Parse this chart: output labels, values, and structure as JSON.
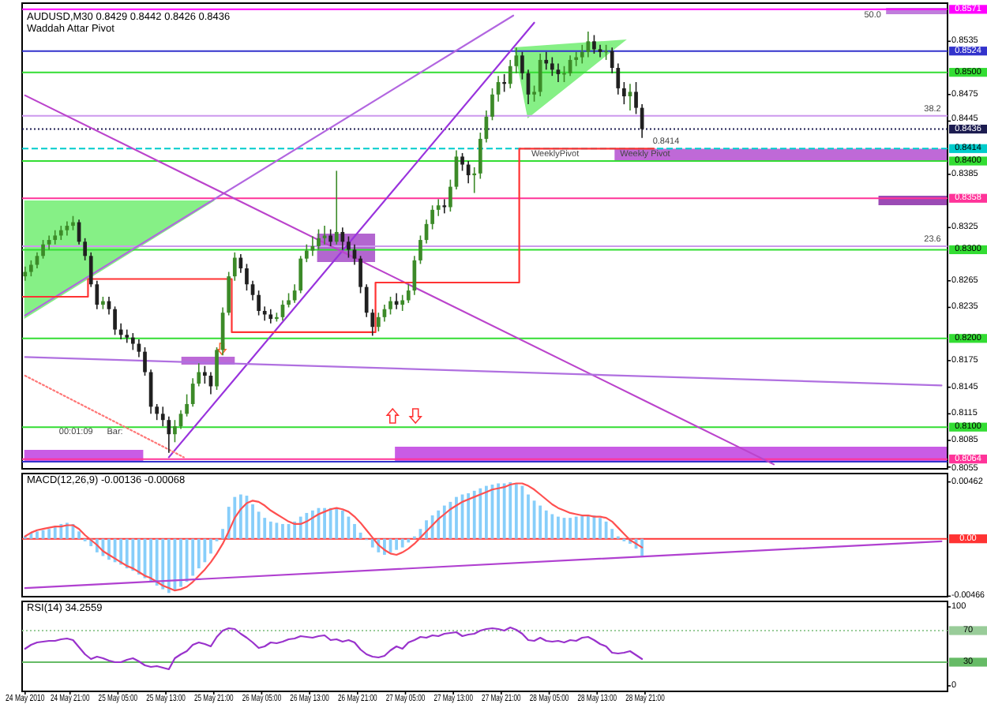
{
  "chart_data": [
    {
      "type": "candlestick",
      "title": "AUDUSD,M30 0.8429 0.8442 0.8426 0.8436",
      "subtitle": "Waddah Attar Pivot",
      "tick_labels": "y",
      "xlim": [
        "2010-05-24T13:00",
        "2010-05-30T23:30"
      ],
      "ylim": [
        0.8053,
        0.8578
      ],
      "yticks": [
        0.8535,
        0.8475,
        0.8445,
        0.8385,
        0.8325,
        0.8265,
        0.8235,
        0.8175,
        0.8145,
        0.8115,
        0.8085,
        0.8055
      ],
      "x": [
        "2010-05-24T13:30",
        "2010-05-24T14:30",
        "2010-05-24T15:30",
        "2010-05-24T16:30",
        "2010-05-24T17:30",
        "2010-05-24T18:30",
        "2010-05-24T19:30",
        "2010-05-24T20:30",
        "2010-05-24T21:30",
        "2010-05-24T22:30",
        "2010-05-24T23:30",
        "2010-05-25T00:30",
        "2010-05-25T01:30",
        "2010-05-25T02:30",
        "2010-05-25T03:30",
        "2010-05-25T04:30",
        "2010-05-25T05:30",
        "2010-05-25T06:30",
        "2010-05-25T07:30",
        "2010-05-25T08:30",
        "2010-05-25T09:30",
        "2010-05-25T10:30",
        "2010-05-25T11:30",
        "2010-05-25T12:30",
        "2010-05-25T13:30",
        "2010-05-25T14:30",
        "2010-05-25T15:30",
        "2010-05-25T16:30",
        "2010-05-25T17:30",
        "2010-05-25T18:30",
        "2010-05-25T19:30",
        "2010-05-25T20:30",
        "2010-05-25T21:30",
        "2010-05-25T22:30",
        "2010-05-25T23:30",
        "2010-05-26T00:30",
        "2010-05-26T01:30",
        "2010-05-26T02:30",
        "2010-05-26T03:30",
        "2010-05-26T04:30",
        "2010-05-26T05:30",
        "2010-05-26T06:30",
        "2010-05-26T07:30",
        "2010-05-26T08:30",
        "2010-05-26T09:30",
        "2010-05-26T10:30",
        "2010-05-26T11:30",
        "2010-05-26T12:30",
        "2010-05-26T13:30",
        "2010-05-26T14:30",
        "2010-05-26T15:30",
        "2010-05-26T16:30",
        "2010-05-26T17:30",
        "2010-05-26T18:30",
        "2010-05-26T19:30",
        "2010-05-26T20:30",
        "2010-05-26T21:30",
        "2010-05-26T22:30",
        "2010-05-26T23:30",
        "2010-05-27T00:30",
        "2010-05-27T01:30",
        "2010-05-27T02:30",
        "2010-05-27T03:30",
        "2010-05-27T04:30",
        "2010-05-27T05:30",
        "2010-05-27T06:30",
        "2010-05-27T07:30",
        "2010-05-27T08:30",
        "2010-05-27T09:30",
        "2010-05-27T10:30",
        "2010-05-27T11:30",
        "2010-05-27T12:30",
        "2010-05-27T13:30",
        "2010-05-27T14:30",
        "2010-05-27T15:30",
        "2010-05-27T16:30",
        "2010-05-27T17:30",
        "2010-05-27T18:30",
        "2010-05-27T19:30",
        "2010-05-27T20:30",
        "2010-05-27T21:30",
        "2010-05-27T22:30",
        "2010-05-27T23:30",
        "2010-05-28T00:30",
        "2010-05-28T01:30",
        "2010-05-28T02:30",
        "2010-05-28T03:30",
        "2010-05-28T04:30",
        "2010-05-28T05:30",
        "2010-05-28T06:30",
        "2010-05-28T07:30",
        "2010-05-28T08:30",
        "2010-05-28T09:30",
        "2010-05-28T10:30",
        "2010-05-28T11:30",
        "2010-05-28T12:30",
        "2010-05-28T13:30",
        "2010-05-28T14:30",
        "2010-05-28T15:30",
        "2010-05-28T16:30",
        "2010-05-28T17:30",
        "2010-05-28T18:30",
        "2010-05-28T19:30",
        "2010-05-28T20:30"
      ],
      "ohlc": [
        [
          0.827,
          0.8281,
          0.8265,
          0.8275
        ],
        [
          0.8275,
          0.8288,
          0.827,
          0.8283
        ],
        [
          0.8283,
          0.8297,
          0.8279,
          0.8293
        ],
        [
          0.8293,
          0.8311,
          0.829,
          0.8306
        ],
        [
          0.8306,
          0.8316,
          0.83,
          0.8311
        ],
        [
          0.8311,
          0.8322,
          0.8306,
          0.8316
        ],
        [
          0.8316,
          0.8327,
          0.8311,
          0.8322
        ],
        [
          0.8322,
          0.8332,
          0.8316,
          0.8327
        ],
        [
          0.8327,
          0.8338,
          0.8322,
          0.8331
        ],
        [
          0.8331,
          0.8334,
          0.8306,
          0.8309
        ],
        [
          0.8309,
          0.8313,
          0.8288,
          0.8293
        ],
        [
          0.8293,
          0.8297,
          0.8258,
          0.8261
        ],
        [
          0.8261,
          0.8265,
          0.8233,
          0.8238
        ],
        [
          0.8238,
          0.8247,
          0.8233,
          0.8242
        ],
        [
          0.8242,
          0.8247,
          0.8227,
          0.8233
        ],
        [
          0.8233,
          0.8236,
          0.8204,
          0.821
        ],
        [
          0.821,
          0.8217,
          0.8199,
          0.8204
        ],
        [
          0.8204,
          0.821,
          0.8195,
          0.8201
        ],
        [
          0.8201,
          0.8206,
          0.8187,
          0.8194
        ],
        [
          0.8194,
          0.8199,
          0.8179,
          0.8185
        ],
        [
          0.8185,
          0.819,
          0.8158,
          0.8162
        ],
        [
          0.8162,
          0.8165,
          0.8115,
          0.8123
        ],
        [
          0.8123,
          0.8126,
          0.8108,
          0.8115
        ],
        [
          0.8115,
          0.8123,
          0.8101,
          0.8108
        ],
        [
          0.8108,
          0.8112,
          0.8071,
          0.8092
        ],
        [
          0.8092,
          0.8108,
          0.8083,
          0.8101
        ],
        [
          0.8101,
          0.8119,
          0.8098,
          0.8115
        ],
        [
          0.8115,
          0.8137,
          0.8112,
          0.8126
        ],
        [
          0.8126,
          0.8155,
          0.8123,
          0.8149
        ],
        [
          0.8149,
          0.8172,
          0.8146,
          0.8162
        ],
        [
          0.8162,
          0.8169,
          0.8149,
          0.8158
        ],
        [
          0.8158,
          0.8162,
          0.8137,
          0.8146
        ],
        [
          0.8146,
          0.819,
          0.8142,
          0.8187
        ],
        [
          0.8187,
          0.8235,
          0.8181,
          0.8229
        ],
        [
          0.8229,
          0.8275,
          0.8226,
          0.827
        ],
        [
          0.827,
          0.8297,
          0.8265,
          0.8291
        ],
        [
          0.8291,
          0.8295,
          0.8274,
          0.8279
        ],
        [
          0.8279,
          0.8284,
          0.8254,
          0.8261
        ],
        [
          0.8261,
          0.8265,
          0.8243,
          0.8249
        ],
        [
          0.8249,
          0.8254,
          0.8226,
          0.8231
        ],
        [
          0.8231,
          0.8236,
          0.822,
          0.8227
        ],
        [
          0.8227,
          0.8233,
          0.8217,
          0.8222
        ],
        [
          0.8222,
          0.8229,
          0.8219,
          0.8224
        ],
        [
          0.8224,
          0.8243,
          0.822,
          0.8238
        ],
        [
          0.8238,
          0.8251,
          0.8235,
          0.8243
        ],
        [
          0.8243,
          0.8261,
          0.824,
          0.8254
        ],
        [
          0.8254,
          0.8293,
          0.8251,
          0.829
        ],
        [
          0.829,
          0.8306,
          0.8286,
          0.8299
        ],
        [
          0.8299,
          0.8315,
          0.8293,
          0.8304
        ],
        [
          0.8304,
          0.8323,
          0.83,
          0.8313
        ],
        [
          0.8313,
          0.8327,
          0.8306,
          0.8316
        ],
        [
          0.8316,
          0.8323,
          0.8304,
          0.8309
        ],
        [
          0.8309,
          0.8389,
          0.8306,
          0.832
        ],
        [
          0.832,
          0.8325,
          0.83,
          0.8309
        ],
        [
          0.8309,
          0.8315,
          0.8291,
          0.83
        ],
        [
          0.83,
          0.8306,
          0.8283,
          0.829
        ],
        [
          0.829,
          0.8293,
          0.8251,
          0.8258
        ],
        [
          0.8258,
          0.8261,
          0.8224,
          0.8229
        ],
        [
          0.8229,
          0.8233,
          0.8203,
          0.8213
        ],
        [
          0.8213,
          0.8229,
          0.8208,
          0.8224
        ],
        [
          0.8224,
          0.8238,
          0.8219,
          0.8233
        ],
        [
          0.8233,
          0.8247,
          0.8227,
          0.8242
        ],
        [
          0.8242,
          0.8251,
          0.8233,
          0.8238
        ],
        [
          0.8238,
          0.8249,
          0.8231,
          0.8243
        ],
        [
          0.8243,
          0.8261,
          0.824,
          0.8254
        ],
        [
          0.8254,
          0.8293,
          0.8249,
          0.8288
        ],
        [
          0.8288,
          0.8316,
          0.8284,
          0.8311
        ],
        [
          0.8311,
          0.8334,
          0.8307,
          0.8329
        ],
        [
          0.8329,
          0.835,
          0.8323,
          0.8345
        ],
        [
          0.8345,
          0.8357,
          0.8338,
          0.835
        ],
        [
          0.835,
          0.8357,
          0.8341,
          0.8348
        ],
        [
          0.8348,
          0.8379,
          0.8343,
          0.8371
        ],
        [
          0.8371,
          0.8412,
          0.8368,
          0.8405
        ],
        [
          0.8405,
          0.8409,
          0.8389,
          0.8396
        ],
        [
          0.8396,
          0.84,
          0.8375,
          0.8384
        ],
        [
          0.8384,
          0.8393,
          0.8364,
          0.8386
        ],
        [
          0.8386,
          0.8432,
          0.838,
          0.8425
        ],
        [
          0.8425,
          0.8457,
          0.8421,
          0.845
        ],
        [
          0.845,
          0.8482,
          0.8446,
          0.8475
        ],
        [
          0.8475,
          0.8496,
          0.8467,
          0.8489
        ],
        [
          0.8489,
          0.8498,
          0.8478,
          0.8487
        ],
        [
          0.8487,
          0.8514,
          0.8482,
          0.8507
        ],
        [
          0.8507,
          0.8528,
          0.8499,
          0.8519
        ],
        [
          0.8519,
          0.8523,
          0.8492,
          0.8499
        ],
        [
          0.8499,
          0.8503,
          0.8464,
          0.8475
        ],
        [
          0.8475,
          0.8485,
          0.8467,
          0.8478
        ],
        [
          0.8478,
          0.8521,
          0.8473,
          0.8514
        ],
        [
          0.8514,
          0.8523,
          0.8503,
          0.851
        ],
        [
          0.851,
          0.8517,
          0.8496,
          0.8503
        ],
        [
          0.8503,
          0.851,
          0.8489,
          0.8498
        ],
        [
          0.8498,
          0.8507,
          0.8489,
          0.8499
        ],
        [
          0.8499,
          0.8519,
          0.8496,
          0.8514
        ],
        [
          0.8514,
          0.8523,
          0.8507,
          0.8517
        ],
        [
          0.8517,
          0.8531,
          0.851,
          0.8523
        ],
        [
          0.8523,
          0.8546,
          0.8517,
          0.8535
        ],
        [
          0.8535,
          0.8542,
          0.8521,
          0.8526
        ],
        [
          0.8526,
          0.8531,
          0.8517,
          0.8523
        ],
        [
          0.8523,
          0.8531,
          0.8514,
          0.8524
        ],
        [
          0.8524,
          0.8528,
          0.8499,
          0.8505
        ],
        [
          0.8505,
          0.851,
          0.8475,
          0.8482
        ],
        [
          0.8482,
          0.8489,
          0.8464,
          0.8473
        ],
        [
          0.8473,
          0.8487,
          0.8457,
          0.8478
        ],
        [
          0.8478,
          0.8489,
          0.8453,
          0.846
        ],
        [
          0.846,
          0.8464,
          0.8426,
          0.8436
        ]
      ],
      "colors": [
        "#3c8a28",
        "#3c8a28",
        "#3c8a28",
        "#3c8a28",
        "#3c8a28",
        "#3c8a28",
        "#3c8a28",
        "#3c8a28",
        "#3c8a28",
        "#202020",
        "#202020",
        "#202020",
        "#202020",
        "#3c8a28",
        "#202020",
        "#202020",
        "#202020",
        "#202020",
        "#202020",
        "#202020",
        "#202020",
        "#202020",
        "#202020",
        "#202020",
        "#202020",
        "#3c8a28",
        "#3c8a28",
        "#3c8a28",
        "#3c8a28",
        "#3c8a28",
        "#202020",
        "#202020",
        "#3c8a28",
        "#3c8a28",
        "#3c8a28",
        "#3c8a28",
        "#202020",
        "#202020",
        "#202020",
        "#202020",
        "#202020",
        "#202020",
        "#3c8a28",
        "#3c8a28",
        "#3c8a28",
        "#3c8a28",
        "#3c8a28",
        "#3c8a28",
        "#3c8a28",
        "#3c8a28",
        "#3c8a28",
        "#202020",
        "#3c8a28",
        "#202020",
        "#202020",
        "#202020",
        "#202020",
        "#202020",
        "#202020",
        "#3c8a28",
        "#3c8a28",
        "#3c8a28",
        "#202020",
        "#3c8a28",
        "#3c8a28",
        "#3c8a28",
        "#3c8a28",
        "#3c8a28",
        "#3c8a28",
        "#3c8a28",
        "#202020",
        "#3c8a28",
        "#3c8a28",
        "#202020",
        "#202020",
        "#3c8a28",
        "#3c8a28",
        "#3c8a28",
        "#3c8a28",
        "#3c8a28",
        "#202020",
        "#3c8a28",
        "#3c8a28",
        "#202020",
        "#202020",
        "#3c8a28",
        "#3c8a28",
        "#202020",
        "#202020",
        "#202020",
        "#3c8a28",
        "#3c8a28",
        "#3c8a28",
        "#3c8a28",
        "#3c8a28",
        "#202020",
        "#202020",
        "#3c8a28",
        "#202020",
        "#202020",
        "#202020",
        "#3c8a28",
        "#202020",
        "#202020"
      ],
      "series": [
        {
          "type": "line",
          "x": [
            "2010-05-24T13:30",
            "2010-05-27T23:00"
          ],
          "values": [
            0.8226,
            0.8564
          ],
          "color": "#b266e0"
        },
        {
          "type": "line",
          "x": [
            "2010-05-25T13:30",
            "2010-05-28T02:30"
          ],
          "values": [
            0.8066,
            0.8556
          ],
          "color": "#9933dd"
        },
        {
          "type": "line",
          "x": [
            "2010-05-24T13:30",
            "2010-05-29T18:30"
          ],
          "values": [
            0.8474,
            0.8058
          ],
          "color": "#bb44cc"
        },
        {
          "type": "line",
          "x": [
            "2010-05-24T13:30",
            "2010-05-30T22:30"
          ],
          "values": [
            0.8179,
            0.8147
          ],
          "color": "#b070e0"
        },
        {
          "type": "line",
          "x": [
            "2010-05-24T13:30",
            "2010-05-25T16:00"
          ],
          "values": [
            0.8158,
            0.8066
          ],
          "color": "#ff7777",
          "line_style": "dotted"
        },
        {
          "type": "step",
          "x": [
            "2010-05-24T13:00",
            "2010-05-25T00:00",
            "2010-05-26T00:00",
            "2010-05-27T00:00",
            "2010-05-28T00:00",
            "2010-05-28T22:30"
          ],
          "values": [
            0.8247,
            0.8267,
            0.8207,
            0.8263,
            0.8414,
            0.8414
          ],
          "color": "#ff3333"
        }
      ],
      "ref_lines": [
        {
          "axis": "y",
          "value": 0.8571,
          "label": "0.8571",
          "color": "#ff00ff"
        },
        {
          "axis": "y",
          "value": 0.8524,
          "label": "0.8524",
          "color": "#3333cc"
        },
        {
          "axis": "y",
          "value": 0.85,
          "label": "0.8500",
          "color": "#33dd33"
        },
        {
          "axis": "y",
          "value": 0.8451,
          "color": "#cc99ee"
        },
        {
          "axis": "y",
          "value": 0.8436,
          "label": "0.8436",
          "color": "#1c1c50",
          "line_style": "dotted"
        },
        {
          "axis": "y",
          "value": 0.8414,
          "label": "0.8414",
          "color": "#00cccc",
          "line_style": "dashed"
        },
        {
          "axis": "y",
          "value": 0.84,
          "label": "0.8400",
          "color": "#33dd33"
        },
        {
          "axis": "y",
          "value": 0.8358,
          "label": "0.8358",
          "color": "#ff3399"
        },
        {
          "axis": "y",
          "value": 0.8304,
          "color": "#cc99ee"
        },
        {
          "axis": "y",
          "value": 0.83,
          "label": "0.8300",
          "color": "#33dd33"
        },
        {
          "axis": "y",
          "value": 0.82,
          "label": "0.8200",
          "color": "#33dd33"
        },
        {
          "axis": "y",
          "value": 0.81,
          "label": "0.8100",
          "color": "#33dd33"
        },
        {
          "axis": "y",
          "value": 0.8064,
          "label": "0.8064",
          "color": "#ff3399"
        },
        {
          "axis": "y",
          "value": 0.8061,
          "color": "#3333cc"
        }
      ],
      "annotations": [
        {
          "text": "50.0",
          "x": "2010-05-30T11:00",
          "y": 0.8564
        },
        {
          "text": "38.2",
          "x": "2010-05-30T21:00",
          "y": 0.8458
        },
        {
          "text": "23.6",
          "x": "2010-05-30T21:00",
          "y": 0.8311
        },
        {
          "text": "WeeklyPivot",
          "x": "2010-05-28T06:00",
          "y": 0.8407
        },
        {
          "text": "Weekly Pivot",
          "x": "2010-05-28T21:00",
          "y": 0.8407
        },
        {
          "text": "0.8414",
          "x": "2010-05-29T00:30",
          "y": 0.8421
        },
        {
          "text": "00:01:09",
          "x": "2010-05-24T22:00",
          "y": 0.8094
        },
        {
          "text": "Bar:",
          "x": "2010-05-25T04:30",
          "y": 0.8094
        }
      ]
    },
    {
      "type": "bar",
      "title": "MACD(12,26,9) -0.00136 -0.00068",
      "tick_labels": "y",
      "xlim": [
        "2010-05-24T13:00",
        "2010-05-30T23:30"
      ],
      "ylim": [
        -0.0047,
        0.0053
      ],
      "yticks": [
        0.00462,
        -0.00466
      ],
      "x": [
        "2010-05-24T13:30",
        "2010-05-24T14:30",
        "2010-05-24T15:30",
        "2010-05-24T16:30",
        "2010-05-24T17:30",
        "2010-05-24T18:30",
        "2010-05-24T19:30",
        "2010-05-24T20:30",
        "2010-05-24T21:30",
        "2010-05-24T22:30",
        "2010-05-24T23:30",
        "2010-05-25T00:30",
        "2010-05-25T01:30",
        "2010-05-25T02:30",
        "2010-05-25T03:30",
        "2010-05-25T04:30",
        "2010-05-25T05:30",
        "2010-05-25T06:30",
        "2010-05-25T07:30",
        "2010-05-25T08:30",
        "2010-05-25T09:30",
        "2010-05-25T10:30",
        "2010-05-25T11:30",
        "2010-05-25T12:30",
        "2010-05-25T13:30",
        "2010-05-25T14:30",
        "2010-05-25T15:30",
        "2010-05-25T16:30",
        "2010-05-25T17:30",
        "2010-05-25T18:30",
        "2010-05-25T19:30",
        "2010-05-25T20:30",
        "2010-05-25T21:30",
        "2010-05-25T22:30",
        "2010-05-25T23:30",
        "2010-05-26T00:30",
        "2010-05-26T01:30",
        "2010-05-26T02:30",
        "2010-05-26T03:30",
        "2010-05-26T04:30",
        "2010-05-26T05:30",
        "2010-05-26T06:30",
        "2010-05-26T07:30",
        "2010-05-26T08:30",
        "2010-05-26T09:30",
        "2010-05-26T10:30",
        "2010-05-26T11:30",
        "2010-05-26T12:30",
        "2010-05-26T13:30",
        "2010-05-26T14:30",
        "2010-05-26T15:30",
        "2010-05-26T16:30",
        "2010-05-26T17:30",
        "2010-05-26T18:30",
        "2010-05-26T19:30",
        "2010-05-26T20:30",
        "2010-05-26T21:30",
        "2010-05-26T22:30",
        "2010-05-26T23:30",
        "2010-05-27T00:30",
        "2010-05-27T01:30",
        "2010-05-27T02:30",
        "2010-05-27T03:30",
        "2010-05-27T04:30",
        "2010-05-27T05:30",
        "2010-05-27T06:30",
        "2010-05-27T07:30",
        "2010-05-27T08:30",
        "2010-05-27T09:30",
        "2010-05-27T10:30",
        "2010-05-27T11:30",
        "2010-05-27T12:30",
        "2010-05-27T13:30",
        "2010-05-27T14:30",
        "2010-05-27T15:30",
        "2010-05-27T16:30",
        "2010-05-27T17:30",
        "2010-05-27T18:30",
        "2010-05-27T19:30",
        "2010-05-27T20:30",
        "2010-05-27T21:30",
        "2010-05-27T22:30",
        "2010-05-27T23:30",
        "2010-05-28T00:30",
        "2010-05-28T01:30",
        "2010-05-28T02:30",
        "2010-05-28T03:30",
        "2010-05-28T04:30",
        "2010-05-28T05:30",
        "2010-05-28T06:30",
        "2010-05-28T07:30",
        "2010-05-28T08:30",
        "2010-05-28T09:30",
        "2010-05-28T10:30",
        "2010-05-28T11:30",
        "2010-05-28T12:30",
        "2010-05-28T13:30",
        "2010-05-28T14:30",
        "2010-05-28T15:30",
        "2010-05-28T16:30",
        "2010-05-28T17:30",
        "2010-05-28T18:30",
        "2010-05-28T19:30",
        "2010-05-28T20:30"
      ],
      "series": [
        {
          "color": "#87cefa",
          "values": [
            0.0002,
            0.0005,
            0.0006,
            0.0007,
            0.0008,
            0.001,
            0.0012,
            0.0013,
            0.0012,
            0.0006,
            -0.0002,
            -0.0006,
            -0.0011,
            -0.0014,
            -0.0017,
            -0.0019,
            -0.0021,
            -0.0024,
            -0.0026,
            -0.0029,
            -0.0032,
            -0.0035,
            -0.0038,
            -0.0041,
            -0.0044,
            -0.0042,
            -0.0039,
            -0.0035,
            -0.003,
            -0.0024,
            -0.0019,
            -0.0012,
            -0.0002,
            0.0008,
            0.0026,
            0.0034,
            0.0036,
            0.0035,
            0.0028,
            0.0022,
            0.0017,
            0.0014,
            0.0013,
            0.0012,
            0.0012,
            0.0014,
            0.0018,
            0.0021,
            0.0023,
            0.0025,
            0.0025,
            0.0025,
            0.0025,
            0.0023,
            0.0018,
            0.0012,
            0.0005,
            -0.0001,
            -0.0007,
            -0.0011,
            -0.0013,
            -0.0011,
            -0.0009,
            -0.0007,
            -0.0003,
            0.0002,
            0.0008,
            0.0015,
            0.0019,
            0.0023,
            0.0027,
            0.003,
            0.0034,
            0.0036,
            0.0037,
            0.0039,
            0.0041,
            0.0043,
            0.0044,
            0.0045,
            0.0045,
            0.0046,
            0.0045,
            0.0043,
            0.0036,
            0.0031,
            0.0027,
            0.0023,
            0.002,
            0.0018,
            0.0017,
            0.0017,
            0.0018,
            0.0019,
            0.0019,
            0.0019,
            0.0017,
            0.0014,
            0.0008,
            0.0002,
            -0.0002,
            -0.0004,
            -0.0008,
            -0.0014
          ]
        },
        {
          "type": "line",
          "color": "#ff5050",
          "values": [
            0.0002,
            0.0005,
            0.0007,
            0.0008,
            0.0009,
            0.001,
            0.001,
            0.0011,
            0.0011,
            0.0008,
            0.0003,
            -0.0001,
            -0.0005,
            -0.001,
            -0.0013,
            -0.0016,
            -0.0019,
            -0.0022,
            -0.0024,
            -0.0027,
            -0.003,
            -0.0032,
            -0.0035,
            -0.0038,
            -0.004,
            -0.0042,
            -0.0041,
            -0.0039,
            -0.0035,
            -0.003,
            -0.0025,
            -0.0019,
            -0.0012,
            -0.0004,
            0.0006,
            0.0017,
            0.0024,
            0.0029,
            0.0031,
            0.003,
            0.0027,
            0.0023,
            0.002,
            0.0017,
            0.0014,
            0.0012,
            0.0012,
            0.0014,
            0.0017,
            0.002,
            0.0022,
            0.0024,
            0.0025,
            0.0024,
            0.0022,
            0.0018,
            0.0013,
            0.0007,
            0.0001,
            -0.0005,
            -0.0009,
            -0.0012,
            -0.0013,
            -0.0011,
            -0.0008,
            -0.0004,
            0.0001,
            0.0006,
            0.0011,
            0.0016,
            0.002,
            0.0024,
            0.0027,
            0.003,
            0.0032,
            0.0034,
            0.0036,
            0.0038,
            0.004,
            0.0041,
            0.0042,
            0.0044,
            0.0045,
            0.0045,
            0.0043,
            0.004,
            0.0036,
            0.0032,
            0.0028,
            0.0025,
            0.0023,
            0.0021,
            0.002,
            0.0019,
            0.0019,
            0.0018,
            0.0018,
            0.0017,
            0.0014,
            0.0009,
            0.0004,
            -0.0001,
            -0.0004,
            -0.0007
          ]
        },
        {
          "type": "line",
          "color": "#b040d0",
          "x": [
            "2010-05-24T13:30",
            "2010-05-30T22:30"
          ],
          "values": [
            -0.004,
            -0.0002
          ]
        }
      ],
      "ref_lines": [
        {
          "axis": "y",
          "value": 0,
          "label": "0.00",
          "color": "#ff3333"
        }
      ]
    },
    {
      "type": "line",
      "title": "RSI(14) 34.2559",
      "xlim": [
        "2010-05-24T13:00",
        "2010-05-30T23:30"
      ],
      "ylim": [
        -7,
        107
      ],
      "yticks": [
        100,
        0
      ],
      "xticks": [
        {
          "value": "2010-05-24T13:30",
          "label": "24 May 2010"
        },
        {
          "value": "2010-05-24T21:00",
          "label": "24 May 21:00"
        },
        {
          "value": "2010-05-25T05:00",
          "label": "25 May 05:00"
        },
        {
          "value": "2010-05-25T13:00",
          "label": "25 May 13:00"
        },
        {
          "value": "2010-05-25T21:00",
          "label": "25 May 21:00"
        },
        {
          "value": "2010-05-26T05:00",
          "label": "26 May 05:00"
        },
        {
          "value": "2010-05-26T13:00",
          "label": "26 May 13:00"
        },
        {
          "value": "2010-05-26T21:00",
          "label": "26 May 21:00"
        },
        {
          "value": "2010-05-27T05:00",
          "label": "27 May 05:00"
        },
        {
          "value": "2010-05-27T13:00",
          "label": "27 May 13:00"
        },
        {
          "value": "2010-05-27T21:00",
          "label": "27 May 21:00"
        },
        {
          "value": "2010-05-28T05:00",
          "label": "28 May 05:00"
        },
        {
          "value": "2010-05-28T13:00",
          "label": "28 May 13:00"
        },
        {
          "value": "2010-05-28T21:00",
          "label": "28 May 21:00"
        }
      ],
      "x": [
        "2010-05-24T13:30",
        "2010-05-24T14:30",
        "2010-05-24T15:30",
        "2010-05-24T16:30",
        "2010-05-24T17:30",
        "2010-05-24T18:30",
        "2010-05-24T19:30",
        "2010-05-24T20:30",
        "2010-05-24T21:30",
        "2010-05-24T22:30",
        "2010-05-24T23:30",
        "2010-05-25T00:30",
        "2010-05-25T01:30",
        "2010-05-25T02:30",
        "2010-05-25T03:30",
        "2010-05-25T04:30",
        "2010-05-25T05:30",
        "2010-05-25T06:30",
        "2010-05-25T07:30",
        "2010-05-25T08:30",
        "2010-05-25T09:30",
        "2010-05-25T10:30",
        "2010-05-25T11:30",
        "2010-05-25T12:30",
        "2010-05-25T13:30",
        "2010-05-25T14:30",
        "2010-05-25T15:30",
        "2010-05-25T16:30",
        "2010-05-25T17:30",
        "2010-05-25T18:30",
        "2010-05-25T19:30",
        "2010-05-25T20:30",
        "2010-05-25T21:30",
        "2010-05-25T22:30",
        "2010-05-25T23:30",
        "2010-05-26T00:30",
        "2010-05-26T01:30",
        "2010-05-26T02:30",
        "2010-05-26T03:30",
        "2010-05-26T04:30",
        "2010-05-26T05:30",
        "2010-05-26T06:30",
        "2010-05-26T07:30",
        "2010-05-26T08:30",
        "2010-05-26T09:30",
        "2010-05-26T10:30",
        "2010-05-26T11:30",
        "2010-05-26T12:30",
        "2010-05-26T13:30",
        "2010-05-26T14:30",
        "2010-05-26T15:30",
        "2010-05-26T16:30",
        "2010-05-26T17:30",
        "2010-05-26T18:30",
        "2010-05-26T19:30",
        "2010-05-26T20:30",
        "2010-05-26T21:30",
        "2010-05-26T22:30",
        "2010-05-26T23:30",
        "2010-05-27T00:30",
        "2010-05-27T01:30",
        "2010-05-27T02:30",
        "2010-05-27T03:30",
        "2010-05-27T04:30",
        "2010-05-27T05:30",
        "2010-05-27T06:30",
        "2010-05-27T07:30",
        "2010-05-27T08:30",
        "2010-05-27T09:30",
        "2010-05-27T10:30",
        "2010-05-27T11:30",
        "2010-05-27T12:30",
        "2010-05-27T13:30",
        "2010-05-27T14:30",
        "2010-05-27T15:30",
        "2010-05-27T16:30",
        "2010-05-27T17:30",
        "2010-05-27T18:30",
        "2010-05-27T19:30",
        "2010-05-27T20:30",
        "2010-05-27T21:30",
        "2010-05-27T22:30",
        "2010-05-27T23:30",
        "2010-05-28T00:30",
        "2010-05-28T01:30",
        "2010-05-28T02:30",
        "2010-05-28T03:30",
        "2010-05-28T04:30",
        "2010-05-28T05:30",
        "2010-05-28T06:30",
        "2010-05-28T07:30",
        "2010-05-28T08:30",
        "2010-05-28T09:30",
        "2010-05-28T10:30",
        "2010-05-28T11:30",
        "2010-05-28T12:30",
        "2010-05-28T13:30",
        "2010-05-28T14:30",
        "2010-05-28T15:30",
        "2010-05-28T16:30",
        "2010-05-28T17:30",
        "2010-05-28T18:30",
        "2010-05-28T19:30",
        "2010-05-28T20:30"
      ],
      "series": [
        {
          "color": "#9932cc",
          "values": [
            47,
            52,
            55,
            56,
            57,
            57,
            59,
            60,
            58,
            49,
            40,
            34,
            37,
            35,
            32,
            30,
            30,
            33,
            35,
            31,
            26,
            24,
            25,
            23,
            21,
            35,
            40,
            44,
            52,
            55,
            53,
            50,
            62,
            70,
            73,
            72,
            66,
            61,
            55,
            48,
            50,
            55,
            54,
            56,
            59,
            60,
            63,
            62,
            61,
            63,
            64,
            58,
            59,
            56,
            58,
            55,
            46,
            40,
            37,
            36,
            38,
            45,
            50,
            47,
            55,
            58,
            62,
            61,
            64,
            63,
            66,
            67,
            68,
            63,
            65,
            66,
            70,
            72,
            73,
            72,
            70,
            74,
            71,
            66,
            58,
            57,
            61,
            57,
            56,
            57,
            55,
            58,
            57,
            61,
            62,
            58,
            53,
            50,
            42,
            41,
            42,
            44,
            39,
            34
          ]
        }
      ],
      "ref_lines": [
        {
          "axis": "y",
          "value": 70,
          "label": "70",
          "color": "#99cc99",
          "line_style": "dotted"
        },
        {
          "axis": "y",
          "value": 30,
          "label": "30",
          "color": "#66bb66"
        }
      ]
    }
  ]
}
